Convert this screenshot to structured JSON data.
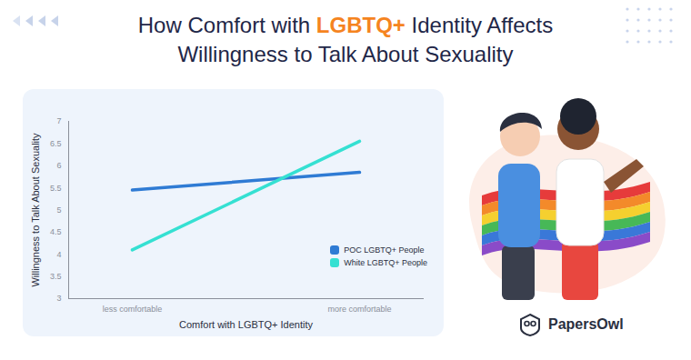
{
  "chart_data": {
    "type": "line",
    "title": "How Comfort with LGBTQ+ Identity Affects Willingness to Talk About Sexuality",
    "x_label": "Comfort with LGBTQ+ Identity",
    "y_label": "Willingness to Talk About Sexuality",
    "categories": [
      "less comfortable",
      "more comfortable"
    ],
    "series": [
      {
        "name": "POC LGBTQ+ People",
        "color": "#2f7bd4",
        "values": [
          5.45,
          5.85
        ]
      },
      {
        "name": "White LGBTQ+ People",
        "color": "#35e0d2",
        "values": [
          4.1,
          6.55
        ]
      }
    ],
    "ylim": [
      3,
      7
    ],
    "yticks": [
      3,
      3.5,
      4,
      4.5,
      5,
      5.5,
      6,
      6.5,
      7
    ],
    "grid": false,
    "legend": "bottom-right"
  },
  "logo_text": "PapersOwl"
}
